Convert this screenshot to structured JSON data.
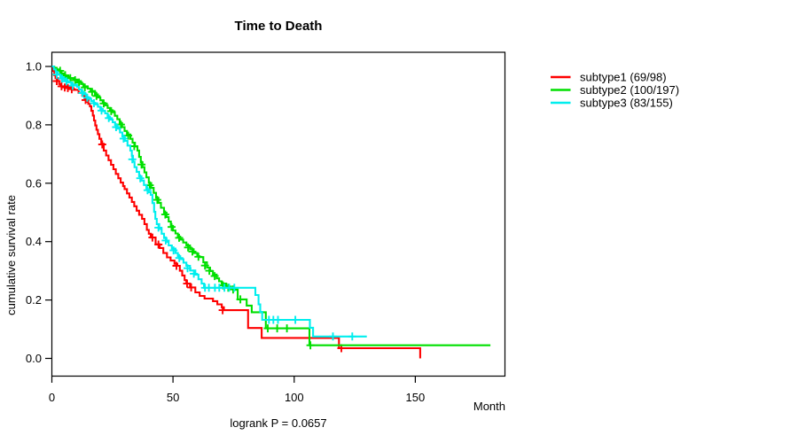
{
  "title": "Time to Death",
  "footnote": "logrank P = 0.0657",
  "axes": {
    "x_label": "Month",
    "y_label": "cumulative survival rate"
  },
  "legend": {
    "items": [
      {
        "label": "subtype1 (69/98)",
        "color": "#FE0000"
      },
      {
        "label": "subtype2 (100/197)",
        "color": "#00DF00"
      },
      {
        "label": "subtype3 (83/155)",
        "color": "#00EEEE"
      }
    ]
  },
  "chart_data": {
    "type": "line",
    "subtype": "kaplan-meier-step-curves",
    "title": "Time to Death",
    "xlabel": "Month",
    "ylabel": "cumulative survival rate",
    "annotation": "logrank P = 0.0657",
    "x_ticks": [
      0,
      50,
      100,
      150
    ],
    "y_ticks": [
      0.0,
      0.2,
      0.4,
      0.6,
      0.8,
      1.0
    ],
    "xlim": [
      0,
      187
    ],
    "ylim": [
      0,
      1
    ],
    "grid": false,
    "legend_position": "right-outside",
    "series": [
      {
        "name": "subtype1",
        "label": "subtype1 (69/98)",
        "events": 69,
        "n": 98,
        "color": "#FE0000",
        "end_month": 152,
        "steps": [
          [
            0,
            1.0
          ],
          [
            0.5,
            0.985
          ],
          [
            1,
            0.97
          ],
          [
            1.5,
            0.96
          ],
          [
            2.5,
            0.95
          ],
          [
            3,
            0.94
          ],
          [
            3.5,
            0.932
          ],
          [
            8,
            0.926
          ],
          [
            9,
            0.92
          ],
          [
            11,
            0.91
          ],
          [
            12.5,
            0.9
          ],
          [
            13.5,
            0.89
          ],
          [
            14.2,
            0.879
          ],
          [
            15,
            0.872
          ],
          [
            15.7,
            0.863
          ],
          [
            16.3,
            0.848
          ],
          [
            16.9,
            0.832
          ],
          [
            17.4,
            0.815
          ],
          [
            17.9,
            0.798
          ],
          [
            18.4,
            0.783
          ],
          [
            19,
            0.768
          ],
          [
            19.6,
            0.752
          ],
          [
            20.4,
            0.735
          ],
          [
            21.4,
            0.712
          ],
          [
            22.4,
            0.695
          ],
          [
            23.4,
            0.679
          ],
          [
            24.4,
            0.663
          ],
          [
            25.4,
            0.648
          ],
          [
            26.4,
            0.632
          ],
          [
            27.4,
            0.617
          ],
          [
            28.4,
            0.602
          ],
          [
            29.4,
            0.59
          ],
          [
            30,
            0.58
          ],
          [
            31,
            0.565
          ],
          [
            32,
            0.551
          ],
          [
            33,
            0.536
          ],
          [
            34,
            0.521
          ],
          [
            35,
            0.506
          ],
          [
            36,
            0.492
          ],
          [
            37.2,
            0.478
          ],
          [
            38.2,
            0.46
          ],
          [
            39.2,
            0.44
          ],
          [
            40,
            0.427
          ],
          [
            40.8,
            0.414
          ],
          [
            42.8,
            0.391
          ],
          [
            44.5,
            0.378
          ],
          [
            46,
            0.361
          ],
          [
            47.5,
            0.346
          ],
          [
            49,
            0.335
          ],
          [
            50.6,
            0.324
          ],
          [
            51.8,
            0.317
          ],
          [
            52.8,
            0.3
          ],
          [
            53.8,
            0.284
          ],
          [
            54.8,
            0.268
          ],
          [
            55.5,
            0.256
          ],
          [
            57,
            0.243
          ],
          [
            59.2,
            0.226
          ],
          [
            61,
            0.214
          ],
          [
            63,
            0.205
          ],
          [
            66.5,
            0.196
          ],
          [
            68.3,
            0.185
          ],
          [
            70.1,
            0.175
          ],
          [
            71,
            0.165
          ],
          [
            81,
            0.104
          ],
          [
            86.6,
            0.07
          ],
          [
            118.5,
            0.035
          ],
          [
            152,
            0
          ]
        ],
        "censors": [
          [
            2,
            0.95
          ],
          [
            4,
            0.932
          ],
          [
            5.3,
            0.928
          ],
          [
            6.6,
            0.926
          ],
          [
            8.2,
            0.922
          ],
          [
            13.9,
            0.885
          ],
          [
            20.8,
            0.733
          ],
          [
            41.5,
            0.414
          ],
          [
            44,
            0.39
          ],
          [
            51.4,
            0.317
          ],
          [
            55.8,
            0.256
          ],
          [
            57.5,
            0.243
          ],
          [
            70.5,
            0.165
          ],
          [
            119.5,
            0.035
          ]
        ]
      },
      {
        "name": "subtype2",
        "label": "subtype2 (100/197)",
        "events": 100,
        "n": 197,
        "color": "#00DF00",
        "end_month": 181,
        "steps": [
          [
            0,
            1.0
          ],
          [
            1,
            0.995
          ],
          [
            2,
            0.99
          ],
          [
            3,
            0.985
          ],
          [
            4,
            0.976
          ],
          [
            5,
            0.97
          ],
          [
            6,
            0.965
          ],
          [
            7,
            0.96
          ],
          [
            9,
            0.955
          ],
          [
            10.4,
            0.95
          ],
          [
            12,
            0.94
          ],
          [
            13,
            0.932
          ],
          [
            14.8,
            0.924
          ],
          [
            16,
            0.916
          ],
          [
            17.8,
            0.904
          ],
          [
            19,
            0.894
          ],
          [
            20,
            0.884
          ],
          [
            21,
            0.875
          ],
          [
            22,
            0.867
          ],
          [
            23,
            0.858
          ],
          [
            24,
            0.85
          ],
          [
            25.1,
            0.843
          ],
          [
            26,
            0.831
          ],
          [
            27,
            0.819
          ],
          [
            28,
            0.806
          ],
          [
            29,
            0.792
          ],
          [
            30,
            0.779
          ],
          [
            31,
            0.767
          ],
          [
            32.4,
            0.752
          ],
          [
            33.3,
            0.739
          ],
          [
            34.3,
            0.726
          ],
          [
            35.3,
            0.712
          ],
          [
            36,
            0.69
          ],
          [
            36.7,
            0.672
          ],
          [
            37.4,
            0.655
          ],
          [
            38.2,
            0.637
          ],
          [
            39,
            0.62
          ],
          [
            40,
            0.601
          ],
          [
            41,
            0.584
          ],
          [
            42,
            0.567
          ],
          [
            43,
            0.55
          ],
          [
            44,
            0.533
          ],
          [
            45,
            0.516
          ],
          [
            46.3,
            0.499
          ],
          [
            47.3,
            0.484
          ],
          [
            48.2,
            0.469
          ],
          [
            49.1,
            0.454
          ],
          [
            50,
            0.438
          ],
          [
            51,
            0.428
          ],
          [
            52,
            0.417
          ],
          [
            53,
            0.407
          ],
          [
            54.2,
            0.397
          ],
          [
            55.5,
            0.387
          ],
          [
            57,
            0.374
          ],
          [
            58.5,
            0.361
          ],
          [
            60,
            0.35
          ],
          [
            61,
            0.347
          ],
          [
            62.5,
            0.329
          ],
          [
            64,
            0.311
          ],
          [
            65.3,
            0.299
          ],
          [
            66.5,
            0.287
          ],
          [
            68,
            0.274
          ],
          [
            69,
            0.264
          ],
          [
            70.1,
            0.256
          ],
          [
            72,
            0.246
          ],
          [
            74,
            0.24
          ],
          [
            75.6,
            0.235
          ],
          [
            76.7,
            0.202
          ],
          [
            80.4,
            0.181
          ],
          [
            82.5,
            0.158
          ],
          [
            88.3,
            0.103
          ],
          [
            106.3,
            0.045
          ]
        ],
        "censors": [
          [
            3.4,
            0.985
          ],
          [
            5.5,
            0.97
          ],
          [
            7.6,
            0.96
          ],
          [
            9.6,
            0.953
          ],
          [
            11.2,
            0.945
          ],
          [
            13.6,
            0.928
          ],
          [
            16.6,
            0.913
          ],
          [
            18.4,
            0.899
          ],
          [
            21.4,
            0.873
          ],
          [
            24.5,
            0.847
          ],
          [
            28.5,
            0.801
          ],
          [
            31.5,
            0.763
          ],
          [
            34,
            0.727
          ],
          [
            37,
            0.664
          ],
          [
            40.4,
            0.593
          ],
          [
            43.5,
            0.543
          ],
          [
            46.8,
            0.493
          ],
          [
            49.4,
            0.45
          ],
          [
            52.5,
            0.413
          ],
          [
            56.2,
            0.38
          ],
          [
            58,
            0.366
          ],
          [
            60.5,
            0.348
          ],
          [
            63.2,
            0.318
          ],
          [
            65,
            0.3
          ],
          [
            67.2,
            0.282
          ],
          [
            70.6,
            0.25
          ],
          [
            72.8,
            0.242
          ],
          [
            74.8,
            0.236
          ],
          [
            77.8,
            0.202
          ],
          [
            89.1,
            0.103
          ],
          [
            93,
            0.103
          ],
          [
            97,
            0.103
          ],
          [
            106.7,
            0.045
          ]
        ]
      },
      {
        "name": "subtype3",
        "label": "subtype3 (83/155)",
        "events": 83,
        "n": 155,
        "color": "#00EEEE",
        "end_month": 130,
        "steps": [
          [
            0,
            1.0
          ],
          [
            0.8,
            0.99
          ],
          [
            1.6,
            0.981
          ],
          [
            2.5,
            0.972
          ],
          [
            3.5,
            0.963
          ],
          [
            5,
            0.954
          ],
          [
            6.5,
            0.945
          ],
          [
            8,
            0.938
          ],
          [
            10.4,
            0.93
          ],
          [
            11.2,
            0.921
          ],
          [
            12.2,
            0.913
          ],
          [
            13.2,
            0.904
          ],
          [
            14.2,
            0.895
          ],
          [
            15.2,
            0.889
          ],
          [
            16.2,
            0.882
          ],
          [
            17.2,
            0.876
          ],
          [
            17.8,
            0.87
          ],
          [
            19,
            0.862
          ],
          [
            20,
            0.854
          ],
          [
            21,
            0.847
          ],
          [
            22,
            0.839
          ],
          [
            23,
            0.828
          ],
          [
            24,
            0.818
          ],
          [
            25.1,
            0.809
          ],
          [
            26.1,
            0.799
          ],
          [
            27.1,
            0.787
          ],
          [
            28.1,
            0.774
          ],
          [
            29.1,
            0.76
          ],
          [
            30.1,
            0.745
          ],
          [
            31.2,
            0.729
          ],
          [
            32.4,
            0.712
          ],
          [
            33,
            0.694
          ],
          [
            33.5,
            0.674
          ],
          [
            34.1,
            0.655
          ],
          [
            35,
            0.639
          ],
          [
            36,
            0.624
          ],
          [
            37,
            0.609
          ],
          [
            38,
            0.594
          ],
          [
            39,
            0.58
          ],
          [
            40,
            0.569
          ],
          [
            40.8,
            0.56
          ],
          [
            41.5,
            0.532
          ],
          [
            42.2,
            0.502
          ],
          [
            42.7,
            0.478
          ],
          [
            43.3,
            0.46
          ],
          [
            44.3,
            0.443
          ],
          [
            45.3,
            0.427
          ],
          [
            46.3,
            0.412
          ],
          [
            47.3,
            0.399
          ],
          [
            48.2,
            0.387
          ],
          [
            49.5,
            0.376
          ],
          [
            51,
            0.361
          ],
          [
            52,
            0.35
          ],
          [
            53,
            0.34
          ],
          [
            54.3,
            0.328
          ],
          [
            55.5,
            0.317
          ],
          [
            57,
            0.301
          ],
          [
            59.2,
            0.287
          ],
          [
            60.5,
            0.271
          ],
          [
            61.8,
            0.256
          ],
          [
            62.8,
            0.242
          ],
          [
            84,
            0.217
          ],
          [
            85.3,
            0.185
          ],
          [
            86,
            0.159
          ],
          [
            86.8,
            0.132
          ],
          [
            106.5,
            0.105
          ],
          [
            107.8,
            0.075
          ]
        ],
        "censors": [
          [
            2,
            0.972
          ],
          [
            4.2,
            0.958
          ],
          [
            6,
            0.949
          ],
          [
            8.6,
            0.934
          ],
          [
            12.6,
            0.909
          ],
          [
            14.6,
            0.893
          ],
          [
            17.4,
            0.874
          ],
          [
            20.5,
            0.849
          ],
          [
            23.5,
            0.823
          ],
          [
            26.5,
            0.792
          ],
          [
            29.6,
            0.753
          ],
          [
            33.2,
            0.682
          ],
          [
            36.5,
            0.617
          ],
          [
            39.5,
            0.576
          ],
          [
            44,
            0.448
          ],
          [
            47,
            0.404
          ],
          [
            50.2,
            0.37
          ],
          [
            52.6,
            0.344
          ],
          [
            56,
            0.309
          ],
          [
            58.6,
            0.29
          ],
          [
            63.2,
            0.242
          ],
          [
            64.8,
            0.242
          ],
          [
            67.3,
            0.242
          ],
          [
            69.1,
            0.242
          ],
          [
            71.2,
            0.242
          ],
          [
            73.2,
            0.242
          ],
          [
            75.3,
            0.242
          ],
          [
            89.6,
            0.132
          ],
          [
            91.4,
            0.132
          ],
          [
            93.3,
            0.132
          ],
          [
            100.5,
            0.132
          ],
          [
            116,
            0.075
          ],
          [
            124,
            0.075
          ]
        ]
      }
    ]
  }
}
